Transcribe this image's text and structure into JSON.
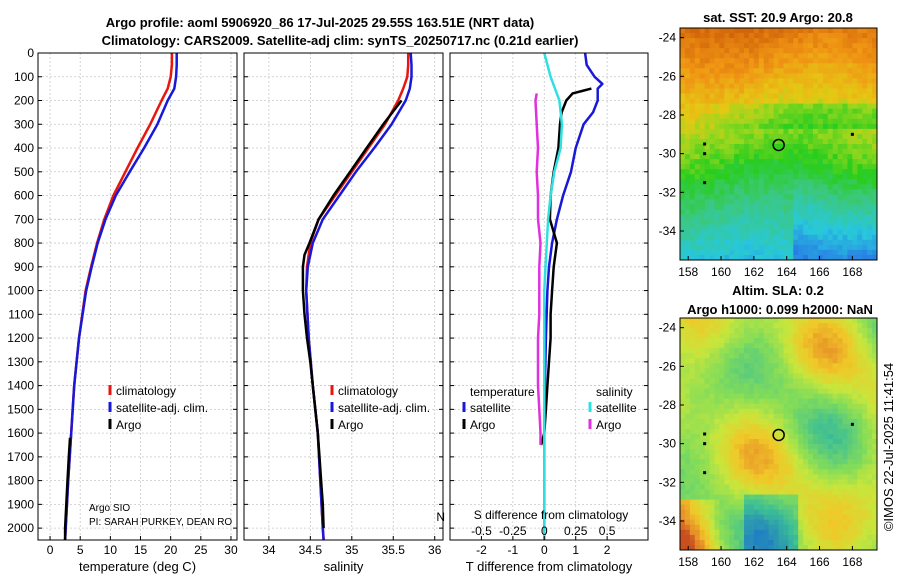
{
  "title_line1": "Argo profile: aoml 5906920_86 17-Jul-2025 29.55S 163.51E (NRT data)",
  "title_line2": "Climatology: CARS2009. Satellite-adj clim: synTS_20250717.nc (0.21d earlier)",
  "sst_title": "sat. SST: 20.9 Argo: 20.8",
  "sla_title1": "Altim. SLA: 0.2",
  "sla_title2": "Argo h1000: 0.099 h2000: NaN",
  "credit": "©IMOS 22-Jul-2025 11:41:54",
  "pi_line1": "Argo SIO",
  "pi_line2": "PI: SARAH PURKEY, DEAN RO",
  "overlap_text": "N",
  "colors": {
    "climatology": "#e8160c",
    "satellite": "#1818d8",
    "argo": "#000000",
    "sat_salinity": "#30e0e0",
    "argo_salinity": "#e030e0"
  },
  "chart_data": [
    {
      "type": "line",
      "xlabel": "temperature (deg C)",
      "xlim": [
        -2,
        31
      ],
      "xticks": [
        0,
        5,
        10,
        15,
        20,
        25,
        30
      ],
      "ylim": [
        0,
        2050
      ],
      "yticks": [
        0,
        100,
        200,
        300,
        400,
        500,
        600,
        700,
        800,
        900,
        1000,
        1100,
        1200,
        1300,
        1400,
        1500,
        1600,
        1700,
        1800,
        1900,
        2000
      ],
      "legend": [
        "climatology",
        "satellite-adj. clim.",
        "Argo"
      ],
      "series": [
        {
          "name": "climatology",
          "depth": [
            0,
            50,
            100,
            150,
            200,
            300,
            400,
            500,
            600,
            700,
            800,
            900,
            1000,
            1200,
            1400,
            1600,
            1800,
            2000,
            2050
          ],
          "values": [
            20.2,
            20.2,
            20.0,
            19.5,
            18.5,
            16.6,
            14.5,
            12.5,
            10.5,
            9.0,
            7.8,
            6.8,
            5.9,
            4.8,
            4.0,
            3.5,
            3.0,
            2.6,
            2.5
          ]
        },
        {
          "name": "satellite-adj. clim.",
          "depth": [
            0,
            50,
            100,
            150,
            200,
            300,
            400,
            500,
            600,
            700,
            800,
            900,
            1000,
            1200,
            1400,
            1600,
            1800,
            2000,
            2050
          ],
          "values": [
            21.0,
            21.0,
            20.9,
            20.6,
            19.5,
            17.8,
            15.6,
            13.2,
            10.9,
            9.2,
            7.9,
            6.9,
            6.0,
            4.8,
            4.0,
            3.5,
            3.0,
            2.6,
            2.5
          ]
        },
        {
          "name": "Argo",
          "depth": [
            1620,
            1700,
            1800,
            1900,
            2000,
            2050
          ],
          "values": [
            3.3,
            3.1,
            2.9,
            2.7,
            2.5,
            2.5
          ]
        }
      ]
    },
    {
      "type": "line",
      "xlabel": "salinity",
      "xlim": [
        33.7,
        36.1
      ],
      "xticks": [
        34,
        34.5,
        35,
        35.5,
        36
      ],
      "ylim": [
        0,
        2050
      ],
      "legend": [
        "climatology",
        "satellite-adj. clim.",
        "Argo"
      ],
      "series": [
        {
          "name": "climatology",
          "depth": [
            0,
            50,
            100,
            150,
            200,
            300,
            400,
            500,
            600,
            700,
            800,
            900,
            1000,
            1200,
            1400,
            1600,
            1800,
            2000,
            2050
          ],
          "values": [
            35.68,
            35.68,
            35.67,
            35.62,
            35.56,
            35.4,
            35.2,
            35.0,
            34.8,
            34.6,
            34.5,
            34.46,
            34.45,
            34.48,
            34.53,
            34.59,
            34.62,
            34.65,
            34.66
          ]
        },
        {
          "name": "satellite-adj. clim.",
          "depth": [
            0,
            50,
            100,
            150,
            200,
            300,
            400,
            500,
            600,
            700,
            800,
            900,
            1000,
            1200,
            1400,
            1600,
            1800,
            2000,
            2050
          ],
          "values": [
            35.71,
            35.72,
            35.72,
            35.7,
            35.65,
            35.48,
            35.27,
            35.05,
            34.85,
            34.65,
            34.53,
            34.47,
            34.45,
            34.48,
            34.53,
            34.59,
            34.62,
            34.65,
            34.66
          ]
        },
        {
          "name": "Argo",
          "depth": [
            200,
            300,
            400,
            500,
            600,
            700,
            800,
            850,
            900,
            1000,
            1100,
            1200,
            1300,
            1400,
            1500,
            1600,
            1700,
            1800,
            1900,
            2000
          ],
          "values": [
            35.6,
            35.38,
            35.18,
            34.98,
            34.78,
            34.6,
            34.49,
            34.43,
            34.41,
            34.41,
            34.43,
            34.46,
            34.5,
            34.53,
            34.56,
            34.59,
            34.61,
            34.63,
            34.65,
            34.66
          ]
        }
      ]
    },
    {
      "type": "line",
      "xlabel": "T difference from climatology",
      "overlay_label": "S difference from climatology",
      "xlim": [
        -3,
        3.3
      ],
      "xticks": [
        -2,
        -1,
        0,
        1,
        2
      ],
      "xticks_secondary": [
        "-0.5",
        "-0.25",
        "0",
        "0.25",
        "0.5"
      ],
      "ylim": [
        0,
        2050
      ],
      "legend_left_title": "temperature",
      "legend_right_title": "salinity",
      "legend_left": [
        "satellite",
        "Argo"
      ],
      "legend_right": [
        "satellite",
        "Argo"
      ],
      "series": [
        {
          "name": "temperature satellite",
          "depth": [
            0,
            50,
            100,
            130,
            150,
            200,
            250,
            300,
            400,
            500,
            600,
            700,
            800,
            900,
            1000,
            1200,
            1400,
            1600,
            1800,
            2000,
            2050
          ],
          "values": [
            1.3,
            1.35,
            1.6,
            1.85,
            1.7,
            1.7,
            1.55,
            1.25,
            1.0,
            0.85,
            0.6,
            0.4,
            0.25,
            0.15,
            0.1,
            0.05,
            0.02,
            0.0,
            0.0,
            0.0,
            0.0
          ]
        },
        {
          "name": "temperature Argo",
          "depth": [
            150,
            160,
            170,
            200,
            250,
            300,
            400,
            500,
            600,
            700,
            800,
            900,
            1000,
            1100,
            1200,
            1300,
            1400,
            1500,
            1600,
            1650
          ],
          "values": [
            1.5,
            1.2,
            0.9,
            0.7,
            0.55,
            0.5,
            0.45,
            0.3,
            0.2,
            0.18,
            0.4,
            0.3,
            0.25,
            0.2,
            0.2,
            0.15,
            0.1,
            0.05,
            0.0,
            -0.1
          ]
        },
        {
          "name": "salinity satellite",
          "depth": [
            0,
            100,
            200,
            300,
            400,
            500,
            600,
            700,
            800,
            900,
            1000,
            1200,
            1400,
            1600,
            1800,
            2000,
            2050
          ],
          "values": [
            0.0,
            0.05,
            0.12,
            0.14,
            0.13,
            0.08,
            0.05,
            0.03,
            0.02,
            0.01,
            0.0,
            0.0,
            0.0,
            0.0,
            0.0,
            0.0,
            0.0
          ]
        },
        {
          "name": "salinity Argo",
          "depth": [
            170,
            200,
            300,
            400,
            500,
            600,
            700,
            800,
            900,
            1000,
            1100,
            1200,
            1300,
            1400,
            1500,
            1600,
            1650
          ],
          "values": [
            -0.06,
            -0.07,
            -0.06,
            -0.05,
            -0.06,
            -0.05,
            -0.05,
            -0.03,
            -0.04,
            -0.04,
            -0.04,
            -0.05,
            -0.05,
            -0.05,
            -0.04,
            -0.03,
            -0.03
          ]
        }
      ]
    },
    {
      "type": "heatmap",
      "title": "sat. SST: 20.9 Argo: 20.8",
      "xticks": [
        158,
        160,
        162,
        164,
        166,
        168
      ],
      "yticks": [
        -24,
        -26,
        -28,
        -30,
        -32,
        -34
      ],
      "xlim": [
        157.5,
        169.5
      ],
      "ylim": [
        -35.5,
        -23.5
      ],
      "marker": {
        "lon": 163.51,
        "lat": -29.55
      }
    },
    {
      "type": "heatmap",
      "title": "Altim. SLA: 0.2",
      "xticks": [
        158,
        160,
        162,
        164,
        166,
        168
      ],
      "yticks": [
        -24,
        -26,
        -28,
        -30,
        -32,
        -34
      ],
      "xlim": [
        157.5,
        169.5
      ],
      "ylim": [
        -35.5,
        -23.5
      ],
      "marker": {
        "lon": 163.51,
        "lat": -29.55
      }
    }
  ]
}
